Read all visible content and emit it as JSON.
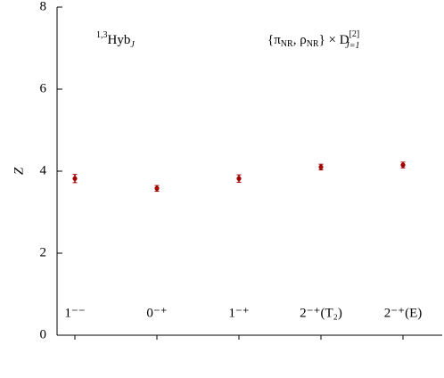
{
  "chart_data": {
    "type": "scatter",
    "y_label": "Z",
    "annotations": [
      {
        "sup": "1,3",
        "main": "Hyb",
        "sub": "J"
      },
      {
        "main": "{π",
        "sub1": "NR",
        "mid": ", ρ",
        "sub2": "NR",
        "end": "} × D",
        "sup": "[2]",
        "sub": "J=1"
      }
    ],
    "categories": [
      "1⁻⁻",
      "0⁻⁺",
      "1⁻⁺",
      "2⁻⁺(T₂)",
      "2⁻⁺(E)"
    ],
    "values": [
      3.82,
      3.58,
      3.82,
      4.1,
      4.15
    ],
    "errors": [
      0.1,
      0.07,
      0.09,
      0.07,
      0.07
    ],
    "color": "#a00000",
    "ylim": [
      0,
      8
    ],
    "yticks": [
      0,
      2,
      4,
      6,
      8
    ]
  }
}
